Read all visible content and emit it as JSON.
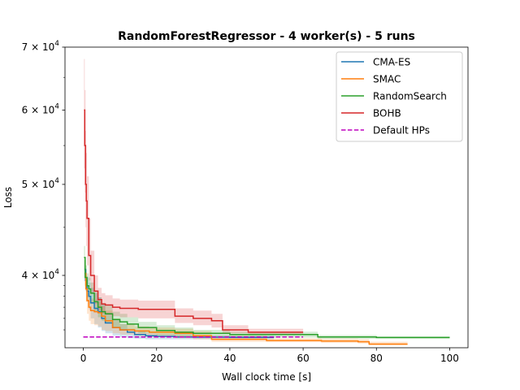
{
  "chart_data": {
    "type": "line",
    "title": "RandomForestRegressor - 4 worker(s) - 5 runs",
    "xlabel": "Wall clock time [s]",
    "ylabel": "Loss",
    "xlim": [
      -5,
      105
    ],
    "ylim": [
      33500,
      70000
    ],
    "yscale": "log",
    "xticks": [
      0,
      20,
      40,
      60,
      80,
      100
    ],
    "xtick_labels": [
      "0",
      "20",
      "40",
      "60",
      "80",
      "100"
    ],
    "ytick_labels": [
      {
        "base": "4 × 10",
        "exp": "4",
        "value": 40000
      },
      {
        "base": "5 × 10",
        "exp": "4",
        "value": 50000
      },
      {
        "base": "6 × 10",
        "exp": "4",
        "value": 60000
      },
      {
        "base": "7 × 10",
        "exp": "4",
        "value": 70000
      }
    ],
    "legend_position": "top-right",
    "series": [
      {
        "name": "CMA-ES",
        "color": "#1f77b4",
        "x": [
          0.3,
          0.6,
          1,
          1.5,
          2,
          3,
          4,
          5,
          6,
          8,
          10,
          12,
          14,
          17,
          20,
          25,
          30,
          40,
          52
        ],
        "y": [
          40600,
          39500,
          38500,
          38000,
          37400,
          36900,
          36600,
          36000,
          35600,
          35200,
          35000,
          34800,
          34600,
          34500,
          34450,
          34400,
          34380,
          34360,
          34350
        ],
        "band_lower": [
          39800,
          38500,
          37500,
          36800,
          36000,
          35500,
          35200,
          34900,
          34700,
          34500,
          34400,
          34300,
          34250,
          34200,
          34200,
          34200,
          34200,
          34200,
          34200
        ],
        "band_upper": [
          41500,
          40600,
          39800,
          39300,
          38800,
          38300,
          37900,
          37300,
          36500,
          35900,
          35500,
          35100,
          34900,
          34750,
          34650,
          34600,
          34550,
          34500,
          34500
        ]
      },
      {
        "name": "SMAC",
        "color": "#ff7f0e",
        "x": [
          0.3,
          0.7,
          1,
          1.5,
          2,
          3,
          4,
          5,
          6,
          8,
          10,
          14,
          18,
          25,
          30,
          35,
          50,
          65,
          75,
          78,
          88.5
        ],
        "y": [
          40200,
          38700,
          37600,
          37000,
          36700,
          36600,
          36500,
          36200,
          35800,
          35200,
          35000,
          34900,
          34800,
          34700,
          34500,
          34200,
          34100,
          34050,
          34000,
          33800,
          33800
        ],
        "band_lower": [
          39000,
          37500,
          36400,
          35800,
          35500,
          35400,
          35300,
          35000,
          34900,
          34700,
          34600,
          34500,
          34400,
          34300,
          34200,
          34000,
          33950,
          33900,
          33850,
          33700,
          33700
        ],
        "band_upper": [
          41500,
          40000,
          38800,
          38200,
          37800,
          37700,
          37500,
          37100,
          36700,
          36000,
          35500,
          35300,
          35200,
          35100,
          34900,
          34500,
          34300,
          34250,
          34200,
          34000,
          34000
        ]
      },
      {
        "name": "RandomSearch",
        "color": "#2ca02c",
        "x": [
          0.2,
          0.5,
          1,
          1.5,
          2,
          3,
          4,
          5,
          6,
          8,
          10,
          12,
          15,
          20,
          25,
          30,
          40,
          64,
          80,
          100
        ],
        "y": [
          41800,
          39800,
          39000,
          38700,
          38300,
          37500,
          37000,
          36600,
          36400,
          35900,
          35700,
          35500,
          35200,
          34950,
          34800,
          34700,
          34600,
          34400,
          34350,
          34350
        ],
        "band_lower": [
          40500,
          38800,
          38000,
          37700,
          37300,
          36600,
          36100,
          35800,
          35600,
          35200,
          35000,
          34900,
          34700,
          34550,
          34450,
          34400,
          34350,
          34250,
          34250,
          34250
        ],
        "band_upper": [
          43000,
          41000,
          40200,
          39800,
          39300,
          38500,
          37900,
          37400,
          37200,
          36600,
          36400,
          36100,
          35700,
          35400,
          35200,
          35000,
          34850,
          34550,
          34450,
          34450
        ]
      },
      {
        "name": "BOHB",
        "color": "#d62728",
        "x": [
          0.2,
          0.4,
          0.6,
          0.8,
          1,
          1.5,
          2,
          3,
          4,
          5,
          6,
          8,
          10,
          12,
          15,
          20,
          25,
          30,
          35,
          38,
          45,
          50,
          60
        ],
        "y": [
          60000,
          55000,
          50000,
          48000,
          46000,
          42000,
          40000,
          38500,
          37700,
          37300,
          37200,
          37000,
          36900,
          36900,
          36800,
          36800,
          36200,
          36000,
          35800,
          35000,
          34800,
          34800,
          34800
        ],
        "band_lower": [
          52000,
          49000,
          45000,
          43000,
          41000,
          39500,
          38200,
          37300,
          36700,
          36400,
          36300,
          36200,
          36100,
          36100,
          36000,
          36000,
          35600,
          35400,
          35200,
          34700,
          34600,
          34600,
          34600
        ],
        "band_upper": [
          68000,
          63000,
          57000,
          54000,
          51000,
          46000,
          42500,
          40000,
          38800,
          38300,
          38100,
          37800,
          37700,
          37700,
          37600,
          37600,
          36900,
          36700,
          36400,
          35400,
          35100,
          35100,
          35100
        ]
      },
      {
        "name": "Default HPs",
        "color": "#bf00bf",
        "dashed": true,
        "x": [
          0,
          60
        ],
        "y": [
          34400,
          34400
        ]
      }
    ]
  }
}
